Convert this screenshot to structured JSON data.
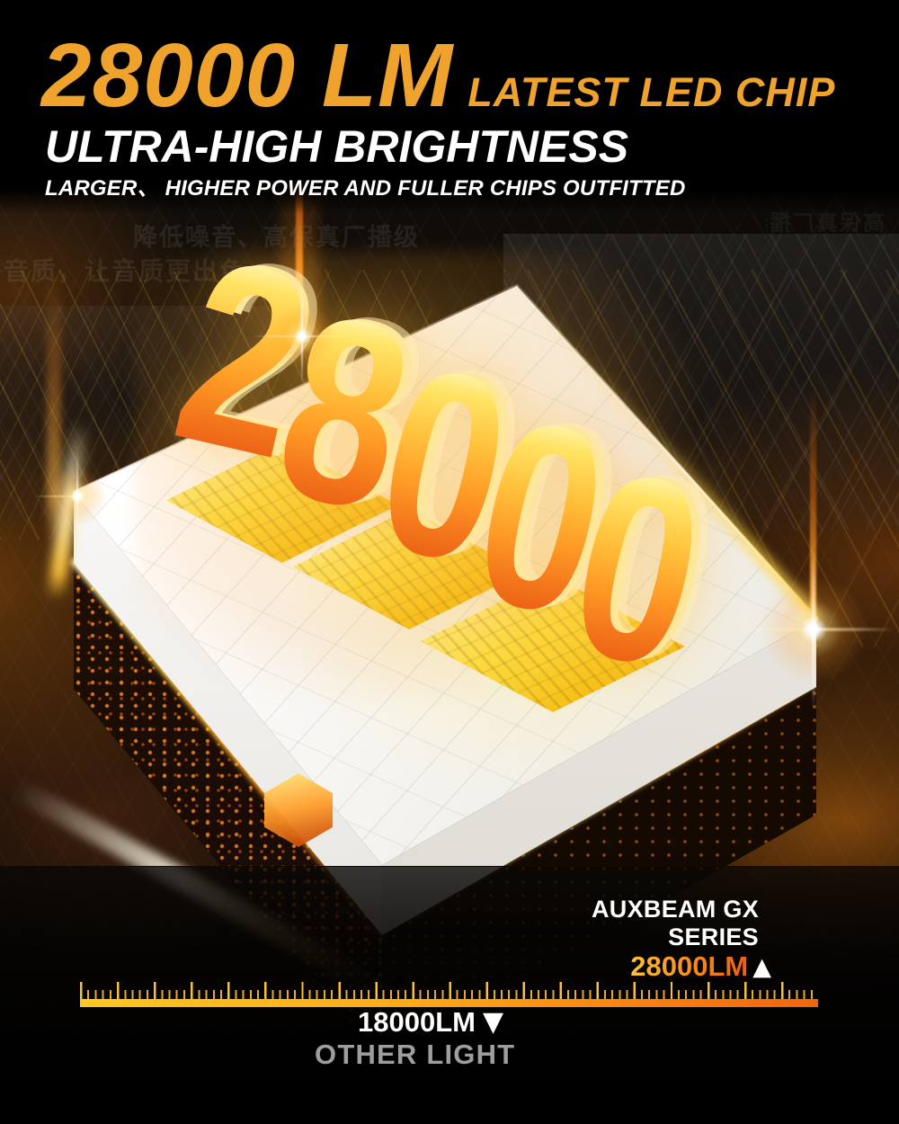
{
  "header": {
    "lumens": "28000 LM",
    "chip_label": "LATEST LED CHIP",
    "subtitle": "ULTRA-HIGH BRIGHTNESS",
    "tagline": "LARGER、 HIGHER POWER AND FULLER CHIPS OUTFITTED"
  },
  "watermark": {
    "line1": "降低噪音、高保真厂播级",
    "line2": "音质，让音质更出色",
    "right": "高保真厂播级"
  },
  "hero": {
    "value": "28000",
    "digits": [
      "2",
      "8",
      "0",
      "0",
      "0"
    ]
  },
  "comparison": {
    "brand_line1": "AUXBEAM GX",
    "brand_line2": "SERIES",
    "brand_value": "28000LM",
    "up_arrow": "▲",
    "other_value": "18000LM",
    "down_arrow": "▼",
    "other_label": "OTHER LIGHT"
  },
  "colors": {
    "headline_orange": "#F0A32C",
    "value_gradient_start": "#FFC233",
    "value_gradient_end": "#EC5F12",
    "ruler_gradient_start": "#FFC81F",
    "ruler_gradient_end": "#F1660D",
    "other_label_gray": "#9E9E9E",
    "digit_gradient_top": "#FFF9C4",
    "digit_gradient_bottom": "#E95D13"
  }
}
